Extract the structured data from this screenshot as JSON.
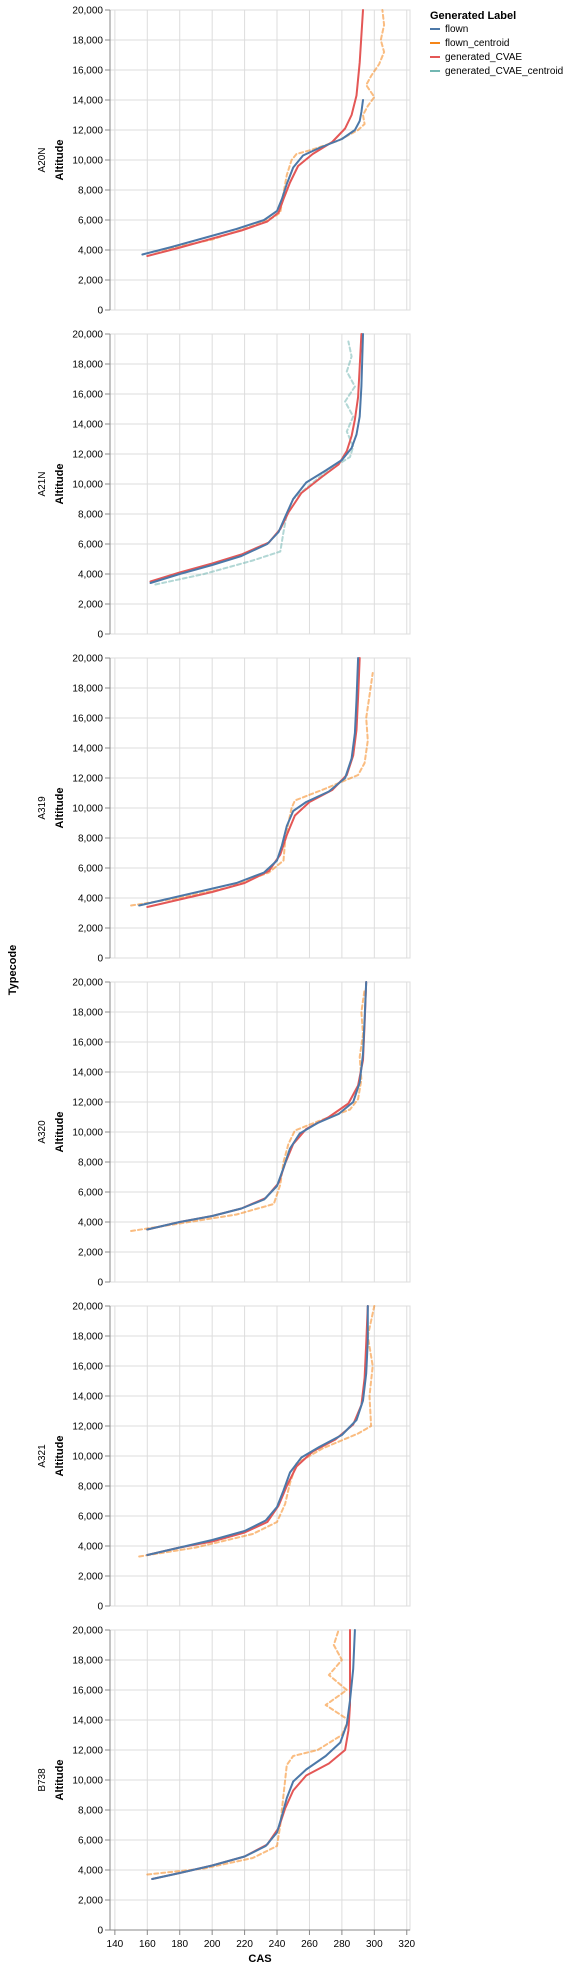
{
  "chart_data": {
    "type": "line",
    "facet_title": "Typecode",
    "xlabel": "CAS",
    "ylabel": "Altitude",
    "xlim": [
      137,
      322
    ],
    "ylim": [
      0,
      20000
    ],
    "x_ticks": [
      140,
      160,
      180,
      200,
      220,
      240,
      260,
      280,
      300,
      320
    ],
    "x_tick_labels": [
      "140",
      "160",
      "180",
      "200",
      "220",
      "240",
      "260",
      "280",
      "300",
      "320"
    ],
    "y_ticks": [
      0,
      2000,
      4000,
      6000,
      8000,
      10000,
      12000,
      14000,
      16000,
      18000,
      20000
    ],
    "y_tick_labels": [
      "0",
      "2,000",
      "4,000",
      "6,000",
      "8,000",
      "10,000",
      "12,000",
      "14,000",
      "16,000",
      "18,000",
      "20,000"
    ],
    "grid": true,
    "legend": {
      "title": "Generated Label",
      "position": "top-right",
      "entries": [
        {
          "name": "flown",
          "color": "#4c78a8"
        },
        {
          "name": "flown_centroid",
          "color": "#f58518"
        },
        {
          "name": "generated_CVAE",
          "color": "#e45756"
        },
        {
          "name": "generated_CVAE_centroid",
          "color": "#72b7b2"
        }
      ]
    },
    "facets": [
      {
        "label": "A20N",
        "series": [
          {
            "name": "flown",
            "x": [
              157,
              175,
              195,
              215,
              232,
              240,
              243,
              246,
              250,
              256,
              266,
              280,
              288,
              291,
              292,
              293
            ],
            "y": [
              3700,
              4200,
              4800,
              5400,
              6000,
              6600,
              7400,
              8400,
              9500,
              10300,
              10800,
              11400,
              12000,
              12600,
              13200,
              14000
            ]
          },
          {
            "name": "generated_CVAE",
            "x": [
              160,
              178,
              198,
              218,
              234,
              241,
              244,
              248,
              253,
              262,
              274,
              282,
              286,
              289,
              291,
              293
            ],
            "y": [
              3600,
              4100,
              4700,
              5300,
              5900,
              6500,
              7400,
              8500,
              9600,
              10400,
              11200,
              12100,
              13000,
              14300,
              16500,
              20000
            ]
          },
          {
            "name": "flown_centroid",
            "x": [
              165,
              200,
              225,
              238,
              242,
              244,
              246,
              249,
              252,
              262,
              278,
              290,
              294,
              293,
              296,
              300,
              295,
              298,
              303,
              306,
              304,
              306,
              305
            ],
            "y": [
              3900,
              4700,
              5600,
              6200,
              6500,
              7800,
              9000,
              10000,
              10400,
              10700,
              11300,
              12000,
              12400,
              13000,
              13600,
              14200,
              15000,
              15600,
              16400,
              17200,
              18000,
              19000,
              20000
            ]
          }
        ]
      },
      {
        "label": "A21N",
        "series": [
          {
            "name": "flown",
            "x": [
              162,
              180,
              200,
              218,
              234,
              241,
              245,
              250,
              258,
              270,
              280,
              286,
              289,
              291,
              292,
              293
            ],
            "y": [
              3400,
              4000,
              4600,
              5200,
              6000,
              6800,
              7800,
              9000,
              10100,
              10900,
              11600,
              12400,
              13300,
              14500,
              16500,
              20000
            ]
          },
          {
            "name": "generated_CVAE",
            "x": [
              162,
              180,
              200,
              218,
              235,
              242,
              247,
              255,
              268,
              278,
              283,
              286,
              288,
              290,
              291,
              292
            ],
            "y": [
              3500,
              4100,
              4700,
              5300,
              6100,
              7000,
              8100,
              9400,
              10500,
              11300,
              12200,
              13200,
              14300,
              15800,
              17800,
              20000
            ]
          },
          {
            "name": "generated_CVAE_centroid",
            "x": [
              165,
              195,
              225,
              242,
              244,
              246,
              250,
              270,
              285,
              287,
              283,
              287,
              282,
              288,
              283,
              286,
              284
            ],
            "y": [
              3300,
              4000,
              4900,
              5500,
              6800,
              8000,
              9000,
              10800,
              11800,
              12500,
              13500,
              14500,
              15500,
              16500,
              17500,
              18500,
              19500
            ]
          }
        ]
      },
      {
        "label": "A319",
        "series": [
          {
            "name": "flown",
            "x": [
              155,
              175,
              195,
              215,
              232,
              240,
              243,
              246,
              250,
              258,
              272,
              282,
              286,
              288,
              289,
              290
            ],
            "y": [
              3500,
              4000,
              4500,
              5000,
              5700,
              6500,
              7500,
              8800,
              9800,
              10400,
              11100,
              12000,
              13300,
              15000,
              17200,
              20000
            ]
          },
          {
            "name": "generated_CVAE",
            "x": [
              160,
              180,
              200,
              220,
              235,
              242,
              246,
              251,
              260,
              274,
              283,
              287,
              289,
              290,
              291
            ],
            "y": [
              3400,
              3900,
              4400,
              5000,
              5800,
              6900,
              8200,
              9500,
              10400,
              11200,
              12200,
              13500,
              15200,
              17400,
              20000
            ]
          },
          {
            "name": "flown_centroid",
            "x": [
              150,
              180,
              210,
              235,
              244,
              245,
              247,
              249,
              251,
              270,
              290,
              294,
              296,
              295,
              297,
              299
            ],
            "y": [
              3500,
              4000,
              4700,
              5700,
              6500,
              7800,
              9000,
              10000,
              10500,
              11300,
              12200,
              13000,
              14500,
              16000,
              17500,
              19000
            ]
          }
        ]
      },
      {
        "label": "A320",
        "series": [
          {
            "name": "flown",
            "x": [
              160,
              180,
              200,
              218,
              232,
              240,
              244,
              248,
              254,
              265,
              278,
              287,
              291,
              293,
              294,
              295
            ],
            "y": [
              3500,
              4000,
              4400,
              4900,
              5500,
              6400,
              7600,
              8900,
              9900,
              10600,
              11200,
              12000,
              13300,
              15200,
              17500,
              20000
            ]
          },
          {
            "name": "generated_CVAE",
            "x": [
              160,
              180,
              200,
              218,
              233,
              241,
              245,
              250,
              258,
              272,
              284,
              290,
              293,
              294,
              295
            ],
            "y": [
              3500,
              4000,
              4400,
              4900,
              5600,
              6600,
              7900,
              9200,
              10200,
              11000,
              11900,
              13100,
              14800,
              17200,
              20000
            ]
          },
          {
            "name": "flown_centroid",
            "x": [
              150,
              180,
              215,
              238,
              242,
              244,
              247,
              251,
              265,
              285,
              290,
              292,
              291,
              293,
              292,
              294
            ],
            "y": [
              3400,
              3900,
              4500,
              5200,
              6500,
              8000,
              9200,
              10100,
              10700,
              11500,
              12200,
              13500,
              15000,
              16500,
              18000,
              19500
            ]
          }
        ]
      },
      {
        "label": "A321",
        "series": [
          {
            "name": "flown",
            "x": [
              160,
              180,
              200,
              220,
              233,
              240,
              244,
              248,
              255,
              266,
              280,
              289,
              293,
              295,
              296,
              296
            ],
            "y": [
              3400,
              3900,
              4400,
              5000,
              5700,
              6600,
              7700,
              8900,
              9900,
              10600,
              11400,
              12400,
              13700,
              15500,
              17700,
              20000
            ]
          },
          {
            "name": "generated_CVAE",
            "x": [
              160,
              180,
              200,
              220,
              234,
              241,
              246,
              252,
              262,
              276,
              287,
              292,
              294,
              295,
              296
            ],
            "y": [
              3400,
              3900,
              4300,
              4900,
              5600,
              6700,
              8000,
              9300,
              10300,
              11100,
              12100,
              13400,
              15200,
              17500,
              20000
            ]
          },
          {
            "name": "flown_centroid",
            "x": [
              155,
              190,
              225,
              240,
              245,
              248,
              252,
              268,
              290,
              298,
              297,
              299,
              296,
              300
            ],
            "y": [
              3300,
              3900,
              4800,
              5600,
              6800,
              8200,
              9500,
              10500,
              11500,
              12000,
              14000,
              16000,
              18000,
              20000
            ]
          }
        ]
      },
      {
        "label": "B738",
        "series": [
          {
            "name": "flown",
            "x": [
              163,
              180,
              200,
              220,
              233,
              240,
              243,
              246,
              250,
              258,
              270,
              279,
              283,
              285,
              287,
              288
            ],
            "y": [
              3400,
              3800,
              4300,
              4900,
              5600,
              6500,
              7600,
              8800,
              9900,
              10700,
              11600,
              12500,
              13700,
              15300,
              17400,
              20000
            ]
          },
          {
            "name": "generated_CVAE",
            "x": [
              163,
              180,
              200,
              220,
              234,
              241,
              245,
              250,
              258,
              272,
              282,
              284,
              285,
              285,
              285
            ],
            "y": [
              3400,
              3800,
              4300,
              4900,
              5700,
              6800,
              8100,
              9300,
              10300,
              11100,
              12000,
              13300,
              15000,
              17200,
              20000
            ]
          },
          {
            "name": "flown_centroid",
            "x": [
              160,
              195,
              225,
              240,
              242,
              244,
              246,
              250,
              265,
              280,
              284,
              270,
              283,
              272,
              280,
              275,
              278
            ],
            "y": [
              3700,
              4100,
              4800,
              5600,
              7000,
              9000,
              11000,
              11600,
              12000,
              13000,
              14000,
              15000,
              16000,
              17000,
              18000,
              19000,
              20000
            ]
          }
        ]
      }
    ]
  }
}
